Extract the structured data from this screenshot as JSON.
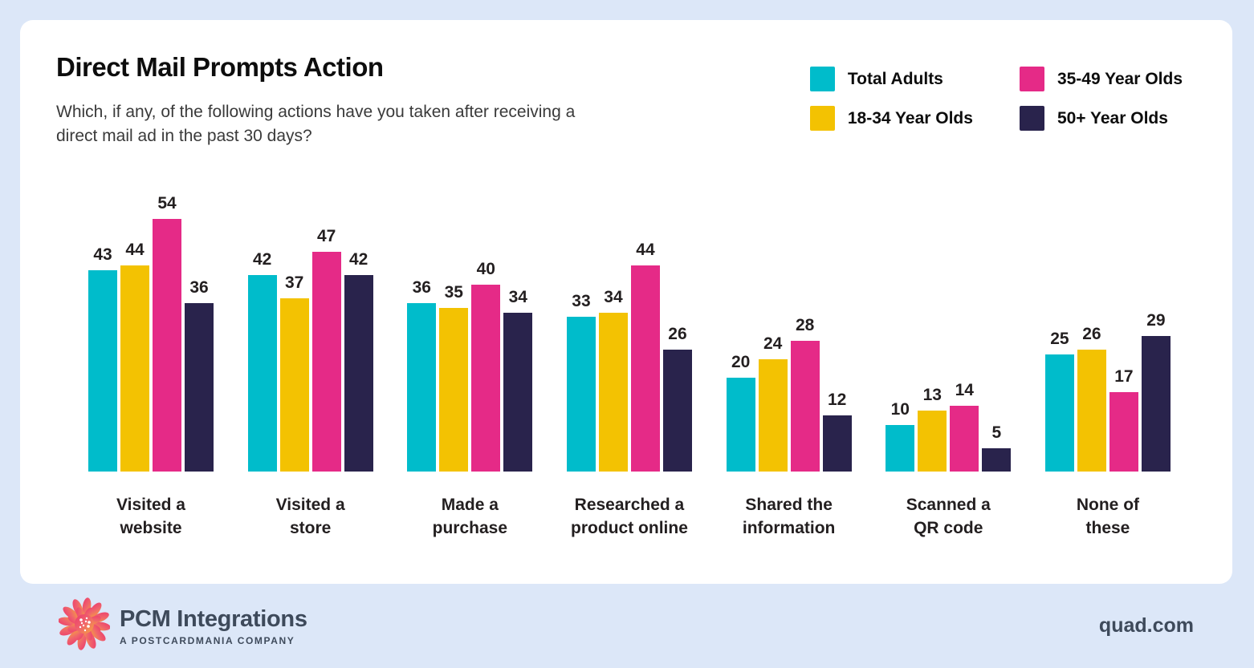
{
  "page": {
    "background_color": "#dce7f8",
    "card_color": "#ffffff"
  },
  "header": {
    "title": "Direct Mail Prompts Action",
    "subtitle": "Which, if any, of the following actions have you taken after receiving a direct mail ad in the past 30 days?"
  },
  "chart_data": {
    "type": "bar",
    "title": "Direct Mail Prompts Action",
    "subtitle": "Which, if any, of the following actions have you taken after receiving a direct mail ad in the past 30 days?",
    "categories": [
      "Visited a website",
      "Visited a store",
      "Made a purchase",
      "Researched a product online",
      "Shared the information",
      "Scanned a QR code",
      "None of these"
    ],
    "category_lines": [
      [
        "Visited a",
        "website"
      ],
      [
        "Visited a",
        "store"
      ],
      [
        "Made a",
        "purchase"
      ],
      [
        "Researched a",
        "product online"
      ],
      [
        "Shared the",
        "information"
      ],
      [
        "Scanned a",
        "QR code"
      ],
      [
        "None of",
        "these"
      ]
    ],
    "series": [
      {
        "name": "Total Adults",
        "color": "#00BCCB",
        "values": [
          43,
          42,
          36,
          33,
          20,
          10,
          25
        ]
      },
      {
        "name": "18-34 Year Olds",
        "color": "#F3C202",
        "values": [
          44,
          37,
          35,
          34,
          24,
          13,
          26
        ]
      },
      {
        "name": "35-49 Year Olds",
        "color": "#E52A87",
        "values": [
          54,
          47,
          40,
          44,
          28,
          14,
          17
        ]
      },
      {
        "name": "50+ Year Olds",
        "color": "#29234C",
        "values": [
          36,
          42,
          34,
          26,
          12,
          5,
          29
        ]
      }
    ],
    "legend_order": [
      0,
      2,
      1,
      3
    ],
    "legend_position": "top-right",
    "value_labels": true,
    "grid": false,
    "xlabel": "",
    "ylabel": "",
    "ylim": [
      0,
      60
    ]
  },
  "footer": {
    "logo_icon": "starburst-flower-logo",
    "brand_name": "PCM Integrations",
    "brand_tagline": "A POSTCARDMANIA COMPANY",
    "website": "quad.com"
  }
}
